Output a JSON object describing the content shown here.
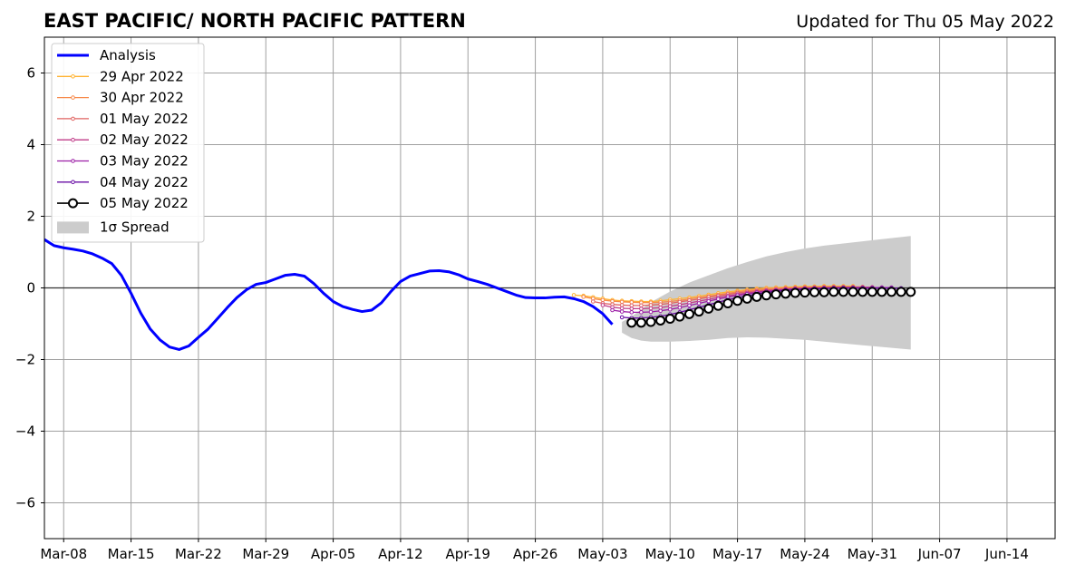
{
  "chart_data": {
    "type": "line",
    "title": "EAST PACIFIC/ NORTH PACIFIC PATTERN",
    "subtitle": "Updated for Thu 05 May 2022",
    "xlabel": "",
    "ylabel": "",
    "ylim": [
      -7,
      7
    ],
    "xlim": [
      "2022-03-06",
      "2022-06-19"
    ],
    "grid": true,
    "legend_position": "top-left",
    "x_tick_labels": [
      "Mar-08",
      "Mar-15",
      "Mar-22",
      "Mar-29",
      "Apr-05",
      "Apr-12",
      "Apr-19",
      "Apr-26",
      "May-03",
      "May-10",
      "May-17",
      "May-24",
      "May-31",
      "Jun-07",
      "Jun-14"
    ],
    "x_tick_dates": [
      "2022-03-08",
      "2022-03-15",
      "2022-03-22",
      "2022-03-29",
      "2022-04-05",
      "2022-04-12",
      "2022-04-19",
      "2022-04-26",
      "2022-05-03",
      "2022-05-10",
      "2022-05-17",
      "2022-05-24",
      "2022-05-31",
      "2022-06-07",
      "2022-06-14"
    ],
    "y_ticks": [
      -6,
      -4,
      -2,
      0,
      2,
      4,
      6
    ],
    "y_tick_labels": [
      "−6",
      "−4",
      "−2",
      "0",
      "2",
      "4",
      "6"
    ],
    "analysis": {
      "name": "Analysis",
      "color": "#0000ff",
      "x": [
        "2022-03-06",
        "2022-03-07",
        "2022-03-08",
        "2022-03-09",
        "2022-03-10",
        "2022-03-11",
        "2022-03-12",
        "2022-03-13",
        "2022-03-14",
        "2022-03-15",
        "2022-03-16",
        "2022-03-17",
        "2022-03-18",
        "2022-03-19",
        "2022-03-20",
        "2022-03-21",
        "2022-03-22",
        "2022-03-23",
        "2022-03-24",
        "2022-03-25",
        "2022-03-26",
        "2022-03-27",
        "2022-03-28",
        "2022-03-29",
        "2022-03-30",
        "2022-03-31",
        "2022-04-01",
        "2022-04-02",
        "2022-04-03",
        "2022-04-04",
        "2022-04-05",
        "2022-04-06",
        "2022-04-07",
        "2022-04-08",
        "2022-04-09",
        "2022-04-10",
        "2022-04-11",
        "2022-04-12",
        "2022-04-13",
        "2022-04-14",
        "2022-04-15",
        "2022-04-16",
        "2022-04-17",
        "2022-04-18",
        "2022-04-19",
        "2022-04-20",
        "2022-04-21",
        "2022-04-22",
        "2022-04-23",
        "2022-04-24",
        "2022-04-25",
        "2022-04-26",
        "2022-04-27",
        "2022-04-28",
        "2022-04-29",
        "2022-04-30",
        "2022-05-01",
        "2022-05-02",
        "2022-05-03",
        "2022-05-04"
      ],
      "y": [
        1.35,
        1.18,
        1.12,
        1.08,
        1.03,
        0.95,
        0.83,
        0.68,
        0.35,
        -0.15,
        -0.7,
        -1.15,
        -1.45,
        -1.65,
        -1.72,
        -1.62,
        -1.38,
        -1.15,
        -0.85,
        -0.55,
        -0.27,
        -0.05,
        0.1,
        0.15,
        0.25,
        0.35,
        0.38,
        0.33,
        0.12,
        -0.15,
        -0.38,
        -0.52,
        -0.6,
        -0.66,
        -0.62,
        -0.42,
        -0.1,
        0.18,
        0.33,
        0.4,
        0.47,
        0.48,
        0.45,
        0.37,
        0.25,
        0.18,
        0.1,
        0.0,
        -0.1,
        -0.2,
        -0.27,
        -0.28,
        -0.28,
        -0.26,
        -0.25,
        -0.3,
        -0.38,
        -0.52,
        -0.72,
        -1.02
      ]
    },
    "spread": {
      "name": "1σ Spread",
      "color": "#cccccc",
      "x": [
        "2022-05-05",
        "2022-05-06",
        "2022-05-07",
        "2022-05-08",
        "2022-05-10",
        "2022-05-12",
        "2022-05-14",
        "2022-05-16",
        "2022-05-18",
        "2022-05-20",
        "2022-05-22",
        "2022-05-24",
        "2022-05-26",
        "2022-05-28",
        "2022-05-30",
        "2022-06-01",
        "2022-06-04"
      ],
      "upper": [
        -0.95,
        -0.8,
        -0.6,
        -0.4,
        -0.1,
        0.15,
        0.35,
        0.55,
        0.72,
        0.88,
        1.0,
        1.1,
        1.18,
        1.24,
        1.3,
        1.36,
        1.45
      ],
      "lower": [
        -1.25,
        -1.4,
        -1.47,
        -1.5,
        -1.5,
        -1.48,
        -1.45,
        -1.4,
        -1.38,
        -1.39,
        -1.42,
        -1.45,
        -1.5,
        -1.55,
        -1.6,
        -1.65,
        -1.72
      ]
    },
    "series": [
      {
        "name": "29 Apr 2022",
        "color": "#ffb331",
        "x": [
          "2022-04-30",
          "2022-05-01",
          "2022-05-02",
          "2022-05-03",
          "2022-05-04",
          "2022-05-05",
          "2022-05-06",
          "2022-05-07",
          "2022-05-08",
          "2022-05-09",
          "2022-05-10",
          "2022-05-11",
          "2022-05-12",
          "2022-05-13",
          "2022-05-14",
          "2022-05-15",
          "2022-05-16",
          "2022-05-17",
          "2022-05-18",
          "2022-05-19",
          "2022-05-20",
          "2022-05-21",
          "2022-05-22",
          "2022-05-23",
          "2022-05-24",
          "2022-05-25",
          "2022-05-26",
          "2022-05-27",
          "2022-05-28",
          "2022-05-29"
        ],
        "y": [
          -0.2,
          -0.22,
          -0.26,
          -0.3,
          -0.34,
          -0.36,
          -0.37,
          -0.38,
          -0.38,
          -0.36,
          -0.33,
          -0.3,
          -0.27,
          -0.23,
          -0.19,
          -0.15,
          -0.11,
          -0.08,
          -0.05,
          -0.02,
          0.0,
          0.01,
          0.02,
          0.03,
          0.04,
          0.04,
          0.05,
          0.05,
          0.05,
          0.05
        ]
      },
      {
        "name": "30 Apr 2022",
        "color": "#f7894a",
        "x": [
          "2022-05-01",
          "2022-05-02",
          "2022-05-03",
          "2022-05-04",
          "2022-05-05",
          "2022-05-06",
          "2022-05-07",
          "2022-05-08",
          "2022-05-09",
          "2022-05-10",
          "2022-05-11",
          "2022-05-12",
          "2022-05-13",
          "2022-05-14",
          "2022-05-15",
          "2022-05-16",
          "2022-05-17",
          "2022-05-18",
          "2022-05-19",
          "2022-05-20",
          "2022-05-21",
          "2022-05-22",
          "2022-05-23",
          "2022-05-24",
          "2022-05-25",
          "2022-05-26",
          "2022-05-27",
          "2022-05-28",
          "2022-05-29",
          "2022-05-30"
        ],
        "y": [
          -0.25,
          -0.3,
          -0.34,
          -0.37,
          -0.39,
          -0.4,
          -0.41,
          -0.41,
          -0.4,
          -0.38,
          -0.35,
          -0.31,
          -0.27,
          -0.23,
          -0.19,
          -0.15,
          -0.11,
          -0.08,
          -0.05,
          -0.03,
          -0.01,
          0.0,
          0.01,
          0.02,
          0.02,
          0.03,
          0.03,
          0.03,
          0.03,
          0.03
        ]
      },
      {
        "name": "01 May 2022",
        "color": "#e16462",
        "x": [
          "2022-05-02",
          "2022-05-03",
          "2022-05-04",
          "2022-05-05",
          "2022-05-06",
          "2022-05-07",
          "2022-05-08",
          "2022-05-09",
          "2022-05-10",
          "2022-05-11",
          "2022-05-12",
          "2022-05-13",
          "2022-05-14",
          "2022-05-15",
          "2022-05-16",
          "2022-05-17",
          "2022-05-18",
          "2022-05-19",
          "2022-05-20",
          "2022-05-21",
          "2022-05-22",
          "2022-05-23",
          "2022-05-24",
          "2022-05-25",
          "2022-05-26",
          "2022-05-27",
          "2022-05-28",
          "2022-05-29",
          "2022-05-30",
          "2022-05-31"
        ],
        "y": [
          -0.38,
          -0.43,
          -0.46,
          -0.48,
          -0.49,
          -0.49,
          -0.48,
          -0.46,
          -0.43,
          -0.39,
          -0.35,
          -0.31,
          -0.26,
          -0.22,
          -0.18,
          -0.14,
          -0.11,
          -0.08,
          -0.06,
          -0.04,
          -0.02,
          -0.01,
          0.0,
          0.01,
          0.01,
          0.02,
          0.02,
          0.02,
          0.02,
          0.02
        ]
      },
      {
        "name": "02 May 2022",
        "color": "#c13d89",
        "x": [
          "2022-05-03",
          "2022-05-04",
          "2022-05-05",
          "2022-05-06",
          "2022-05-07",
          "2022-05-08",
          "2022-05-09",
          "2022-05-10",
          "2022-05-11",
          "2022-05-12",
          "2022-05-13",
          "2022-05-14",
          "2022-05-15",
          "2022-05-16",
          "2022-05-17",
          "2022-05-18",
          "2022-05-19",
          "2022-05-20",
          "2022-05-21",
          "2022-05-22",
          "2022-05-23",
          "2022-05-24",
          "2022-05-25",
          "2022-05-26",
          "2022-05-27",
          "2022-05-28",
          "2022-05-29",
          "2022-05-30",
          "2022-05-31",
          "2022-06-01"
        ],
        "y": [
          -0.48,
          -0.54,
          -0.57,
          -0.58,
          -0.58,
          -0.57,
          -0.55,
          -0.51,
          -0.47,
          -0.42,
          -0.37,
          -0.32,
          -0.27,
          -0.22,
          -0.18,
          -0.14,
          -0.11,
          -0.08,
          -0.06,
          -0.04,
          -0.02,
          -0.01,
          0.0,
          0.0,
          0.01,
          0.01,
          0.01,
          0.01,
          0.01,
          0.01
        ]
      },
      {
        "name": "03 May 2022",
        "color": "#9c1ea6",
        "x": [
          "2022-05-04",
          "2022-05-05",
          "2022-05-06",
          "2022-05-07",
          "2022-05-08",
          "2022-05-09",
          "2022-05-10",
          "2022-05-11",
          "2022-05-12",
          "2022-05-13",
          "2022-05-14",
          "2022-05-15",
          "2022-05-16",
          "2022-05-17",
          "2022-05-18",
          "2022-05-19",
          "2022-05-20",
          "2022-05-21",
          "2022-05-22",
          "2022-05-23",
          "2022-05-24",
          "2022-05-25",
          "2022-05-26",
          "2022-05-27",
          "2022-05-28",
          "2022-05-29",
          "2022-05-30",
          "2022-05-31",
          "2022-06-01",
          "2022-06-02"
        ],
        "y": [
          -0.62,
          -0.66,
          -0.68,
          -0.68,
          -0.67,
          -0.64,
          -0.6,
          -0.55,
          -0.49,
          -0.43,
          -0.37,
          -0.31,
          -0.26,
          -0.21,
          -0.17,
          -0.13,
          -0.1,
          -0.07,
          -0.05,
          -0.03,
          -0.02,
          -0.01,
          0.0,
          0.0,
          0.01,
          0.01,
          0.01,
          0.01,
          0.01,
          0.01
        ]
      },
      {
        "name": "04 May 2022",
        "color": "#6a0fa5",
        "x": [
          "2022-05-05",
          "2022-05-06",
          "2022-05-07",
          "2022-05-08",
          "2022-05-09",
          "2022-05-10",
          "2022-05-11",
          "2022-05-12",
          "2022-05-13",
          "2022-05-14",
          "2022-05-15",
          "2022-05-16",
          "2022-05-17",
          "2022-05-18",
          "2022-05-19",
          "2022-05-20",
          "2022-05-21",
          "2022-05-22",
          "2022-05-23",
          "2022-05-24",
          "2022-05-25",
          "2022-05-26",
          "2022-05-27",
          "2022-05-28",
          "2022-05-29",
          "2022-05-30",
          "2022-05-31",
          "2022-06-01",
          "2022-06-02",
          "2022-06-03"
        ],
        "y": [
          -0.82,
          -0.84,
          -0.84,
          -0.82,
          -0.79,
          -0.74,
          -0.68,
          -0.61,
          -0.54,
          -0.47,
          -0.4,
          -0.33,
          -0.27,
          -0.22,
          -0.17,
          -0.13,
          -0.1,
          -0.07,
          -0.05,
          -0.04,
          -0.03,
          -0.02,
          -0.01,
          -0.01,
          -0.01,
          -0.01,
          -0.01,
          -0.01,
          -0.01,
          -0.01
        ]
      },
      {
        "name": "05 May 2022",
        "color": "#000000",
        "x": [
          "2022-05-06",
          "2022-05-07",
          "2022-05-08",
          "2022-05-09",
          "2022-05-10",
          "2022-05-11",
          "2022-05-12",
          "2022-05-13",
          "2022-05-14",
          "2022-05-15",
          "2022-05-16",
          "2022-05-17",
          "2022-05-18",
          "2022-05-19",
          "2022-05-20",
          "2022-05-21",
          "2022-05-22",
          "2022-05-23",
          "2022-05-24",
          "2022-05-25",
          "2022-05-26",
          "2022-05-27",
          "2022-05-28",
          "2022-05-29",
          "2022-05-30",
          "2022-05-31",
          "2022-06-01",
          "2022-06-02",
          "2022-06-03",
          "2022-06-04"
        ],
        "y": [
          -0.97,
          -0.97,
          -0.95,
          -0.91,
          -0.86,
          -0.8,
          -0.73,
          -0.66,
          -0.58,
          -0.5,
          -0.43,
          -0.36,
          -0.3,
          -0.25,
          -0.21,
          -0.18,
          -0.16,
          -0.14,
          -0.13,
          -0.12,
          -0.12,
          -0.11,
          -0.11,
          -0.11,
          -0.11,
          -0.11,
          -0.11,
          -0.11,
          -0.11,
          -0.11
        ]
      }
    ]
  }
}
